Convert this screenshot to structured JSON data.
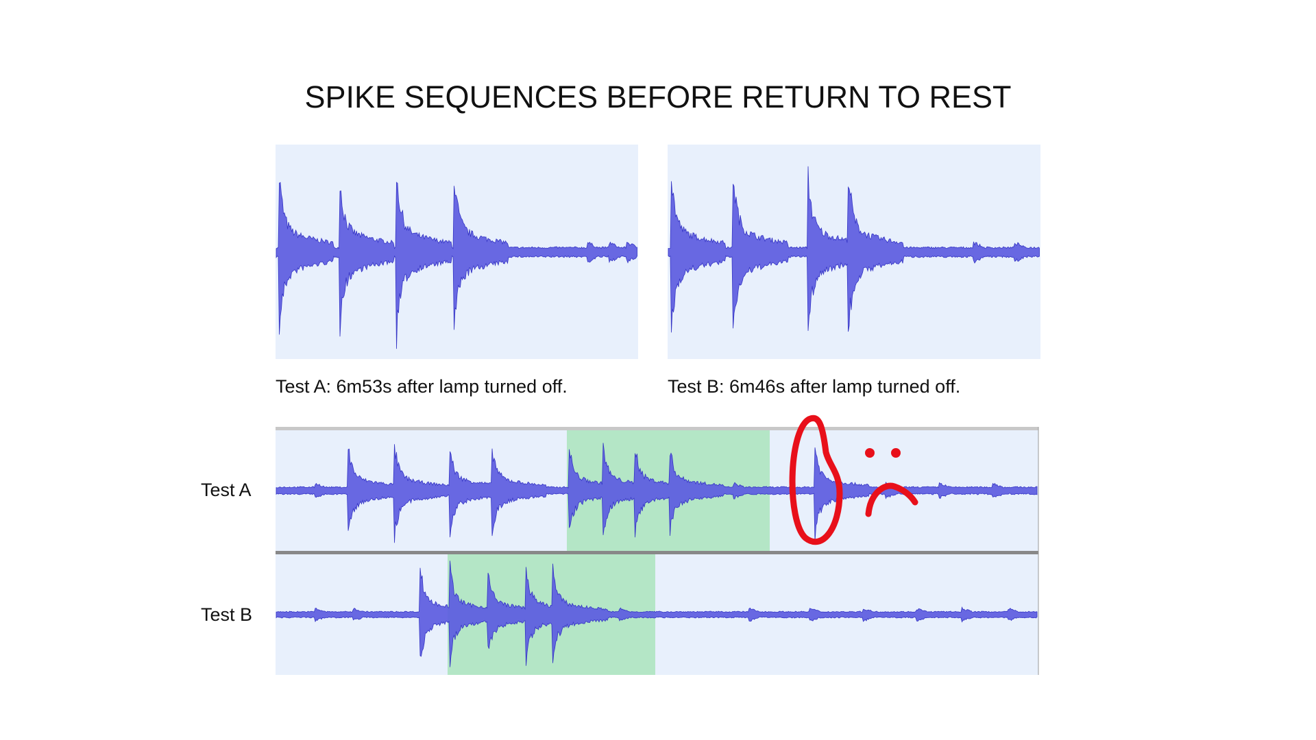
{
  "header": {
    "title": "SPIKE SEQUENCES BEFORE RETURN TO REST"
  },
  "panels": [
    {
      "caption": "Test A: 6m53s after lamp turned off."
    },
    {
      "caption": "Test B: 6m46s after lamp turned off."
    }
  ],
  "tracks": [
    {
      "label": "Test A"
    },
    {
      "label": "Test B"
    }
  ]
}
